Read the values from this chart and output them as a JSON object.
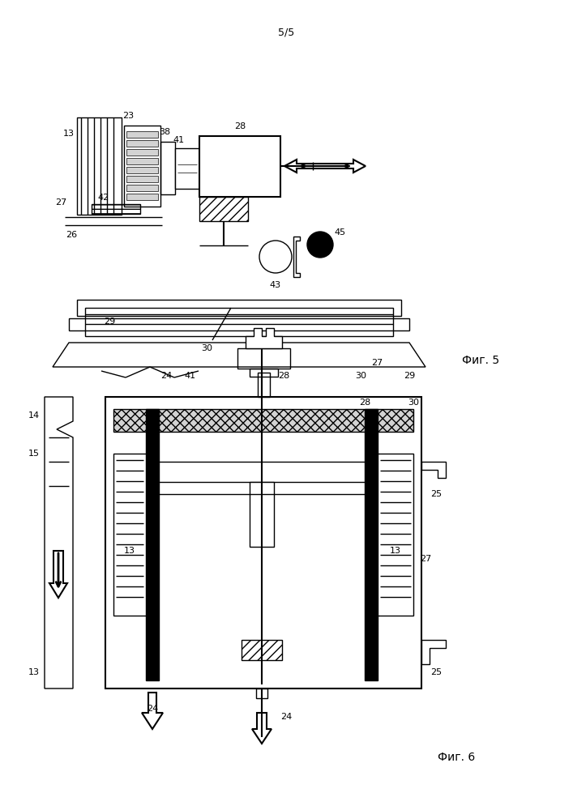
{
  "page_label": "5/5",
  "fig5_label": "Фиг. 5",
  "fig6_label": "Фиг. 6",
  "background": "#ffffff",
  "line_color": "#000000",
  "hatch_color": "#000000"
}
